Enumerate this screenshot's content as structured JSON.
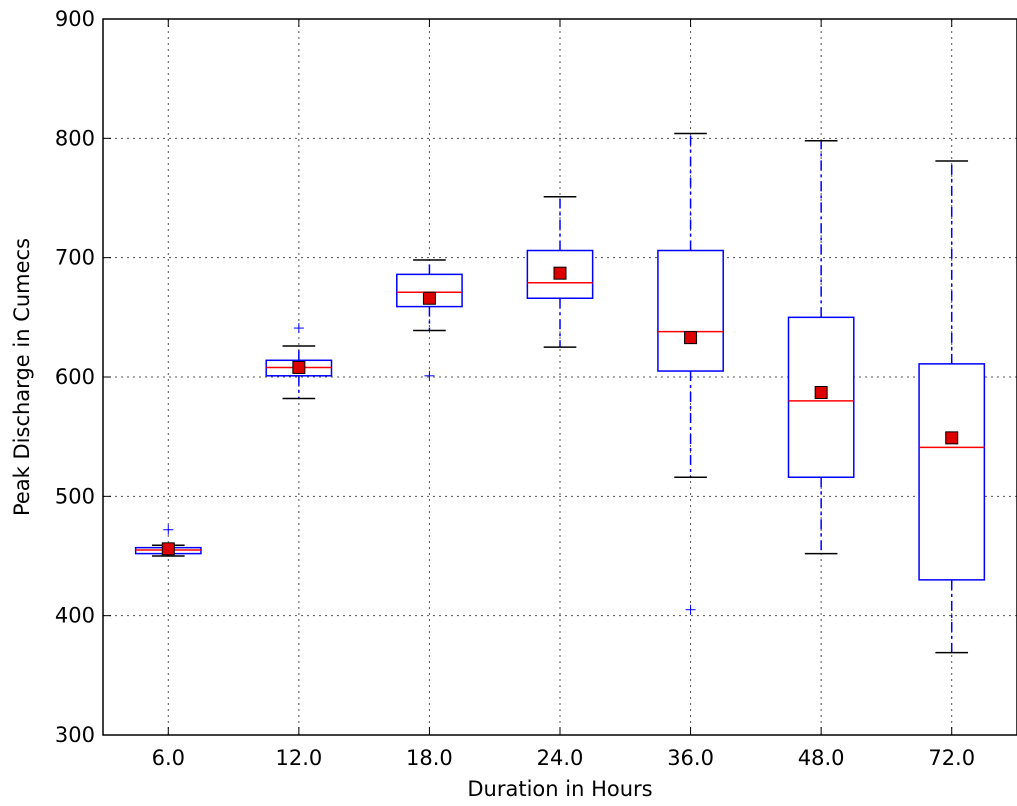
{
  "chart_data": {
    "type": "boxplot",
    "xlabel": "Duration in Hours",
    "ylabel": "Peak Discharge in Cumecs",
    "ylim": [
      300,
      900
    ],
    "yticks": [
      "300",
      "400",
      "500",
      "600",
      "700",
      "800",
      "900"
    ],
    "grid": true,
    "categories": [
      "6.0",
      "12.0",
      "18.0",
      "24.0",
      "36.0",
      "48.0",
      "72.0"
    ],
    "boxes": [
      {
        "whisker_low": 450,
        "q1": 452,
        "median": 455,
        "q3": 457,
        "whisker_high": 459,
        "mean": 456,
        "outliers": [
          472
        ]
      },
      {
        "whisker_low": 582,
        "q1": 601,
        "median": 608,
        "q3": 614,
        "whisker_high": 626,
        "mean": 608,
        "outliers": [
          641
        ]
      },
      {
        "whisker_low": 639,
        "q1": 659,
        "median": 671,
        "q3": 686,
        "whisker_high": 698,
        "mean": 666,
        "outliers": [
          601
        ]
      },
      {
        "whisker_low": 625,
        "q1": 666,
        "median": 679,
        "q3": 706,
        "whisker_high": 751,
        "mean": 687,
        "outliers": []
      },
      {
        "whisker_low": 516,
        "q1": 605,
        "median": 638,
        "q3": 706,
        "whisker_high": 804,
        "mean": 633,
        "outliers": [
          405
        ]
      },
      {
        "whisker_low": 452,
        "q1": 516,
        "median": 580,
        "q3": 650,
        "whisker_high": 798,
        "mean": 587,
        "outliers": []
      },
      {
        "whisker_low": 369,
        "q1": 430,
        "median": 541,
        "q3": 611,
        "whisker_high": 781,
        "mean": 549,
        "outliers": []
      }
    ],
    "colors": {
      "box": "#0000ff",
      "median": "#ff0000",
      "mean_marker": "#dd0000",
      "whisker": "#0000ff",
      "cap": "#000000",
      "outlier": "#0000ff",
      "grid": "#555555"
    }
  }
}
